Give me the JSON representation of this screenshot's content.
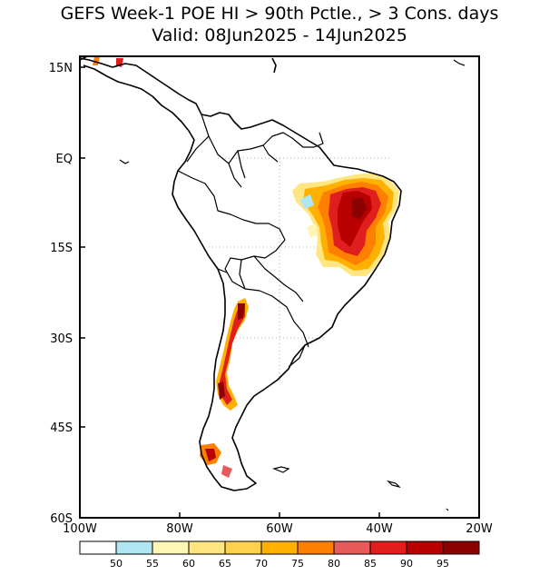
{
  "title": {
    "line1": "GEFS Week-1 POE HI > 90th Pctle., > 3 Cons. days",
    "line2": "Valid: 08Jun2025 - 14Jun2025"
  },
  "axes": {
    "lat_labels": [
      "15N",
      "EQ",
      "15S",
      "30S",
      "45S",
      "60S"
    ],
    "lon_labels": [
      "100W",
      "80W",
      "60W",
      "40W",
      "20W"
    ],
    "lon_range": [
      -100,
      -20
    ],
    "lat_range": [
      -60,
      15
    ]
  },
  "colorbar": {
    "labels": [
      "50",
      "55",
      "60",
      "65",
      "70",
      "75",
      "80",
      "85",
      "90",
      "95"
    ],
    "colors": [
      "#ffffff",
      "#aee6f2",
      "#fff5b4",
      "#ffe680",
      "#ffd24d",
      "#ffb000",
      "#ff8000",
      "#e85a5a",
      "#e01e1e",
      "#b80000",
      "#8c0000"
    ]
  },
  "colors": {
    "coast": "#000000",
    "grid": "#aaaaaa"
  }
}
